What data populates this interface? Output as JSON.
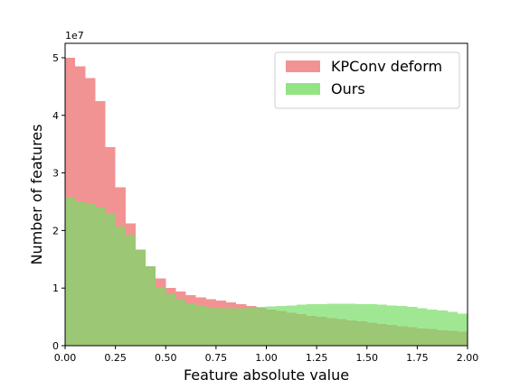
{
  "chart_data": {
    "type": "histogram",
    "title": "",
    "xlabel": "Feature absolute value",
    "ylabel": "Number of features",
    "y_multiplier_label": "1e7",
    "xlim": [
      0,
      2
    ],
    "ylim": [
      0,
      5.25
    ],
    "x_ticks": [
      "0.00",
      "0.25",
      "0.50",
      "0.75",
      "1.00",
      "1.25",
      "1.50",
      "1.75",
      "2.00"
    ],
    "y_ticks": [
      "0",
      "1",
      "2",
      "3",
      "4",
      "5"
    ],
    "bin_width": 0.05,
    "legend_position": "top-right",
    "grid": false,
    "series": [
      {
        "name": "KPConv deform",
        "color": "#f08080",
        "bin_starts": [
          0.0,
          0.05,
          0.1,
          0.15,
          0.2,
          0.25,
          0.3,
          0.35,
          0.4,
          0.45,
          0.5,
          0.55,
          0.6,
          0.65,
          0.7,
          0.75,
          0.8,
          0.85,
          0.9,
          0.95,
          1.0,
          1.05,
          1.1,
          1.15,
          1.2,
          1.25,
          1.3,
          1.35,
          1.4,
          1.45,
          1.5,
          1.55,
          1.6,
          1.65,
          1.7,
          1.75,
          1.8,
          1.85,
          1.9,
          1.95
        ],
        "values": [
          5.0,
          4.85,
          4.65,
          4.25,
          3.45,
          2.75,
          2.12,
          1.67,
          1.38,
          1.17,
          1.0,
          0.94,
          0.88,
          0.84,
          0.81,
          0.78,
          0.75,
          0.72,
          0.69,
          0.66,
          0.63,
          0.6,
          0.57,
          0.55,
          0.52,
          0.5,
          0.48,
          0.46,
          0.44,
          0.42,
          0.4,
          0.38,
          0.36,
          0.34,
          0.32,
          0.3,
          0.29,
          0.27,
          0.26,
          0.24
        ]
      },
      {
        "name": "Ours",
        "color": "#77dd66",
        "bin_starts": [
          0.0,
          0.05,
          0.1,
          0.15,
          0.2,
          0.25,
          0.3,
          0.35,
          0.4,
          0.45,
          0.5,
          0.55,
          0.6,
          0.65,
          0.7,
          0.75,
          0.8,
          0.85,
          0.9,
          0.95,
          1.0,
          1.05,
          1.1,
          1.15,
          1.2,
          1.25,
          1.3,
          1.35,
          1.4,
          1.45,
          1.5,
          1.55,
          1.6,
          1.65,
          1.7,
          1.75,
          1.8,
          1.85,
          1.9,
          1.95
        ],
        "values": [
          2.58,
          2.5,
          2.46,
          2.4,
          2.3,
          2.07,
          1.93,
          1.67,
          1.38,
          1.0,
          0.9,
          0.81,
          0.74,
          0.69,
          0.66,
          0.65,
          0.65,
          0.65,
          0.66,
          0.67,
          0.68,
          0.69,
          0.7,
          0.71,
          0.72,
          0.72,
          0.73,
          0.73,
          0.73,
          0.72,
          0.72,
          0.71,
          0.7,
          0.69,
          0.67,
          0.65,
          0.63,
          0.61,
          0.59,
          0.56
        ]
      }
    ]
  }
}
